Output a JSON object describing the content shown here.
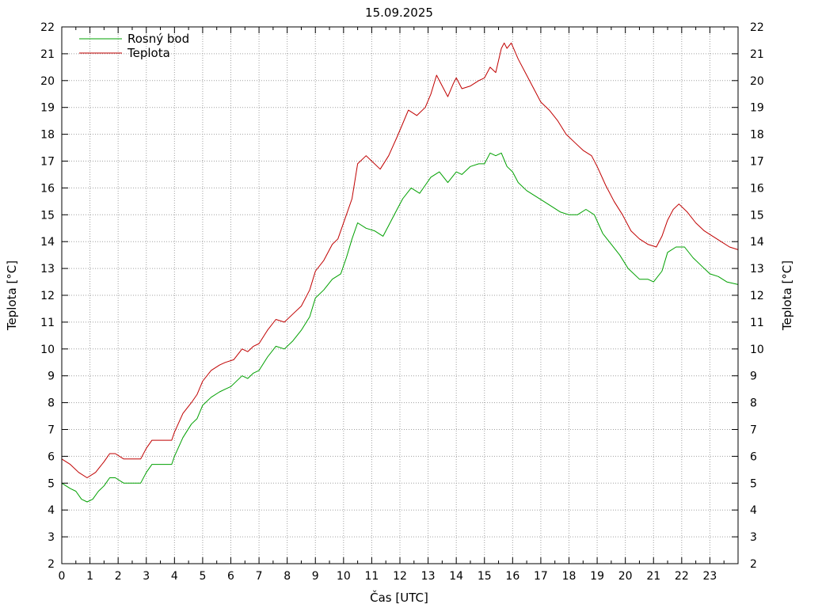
{
  "chart_data": {
    "type": "line",
    "title": "15.09.2025",
    "xlabel": "Čas [UTC]",
    "ylabel": "Teplota [°C]",
    "y2label": "Teplota [°C]",
    "xlim": [
      0,
      24
    ],
    "ylim": [
      2,
      22
    ],
    "x_ticks": [
      0,
      1,
      2,
      3,
      4,
      5,
      6,
      7,
      8,
      9,
      10,
      11,
      12,
      13,
      14,
      15,
      16,
      17,
      18,
      19,
      20,
      21,
      22,
      23
    ],
    "y_ticks": [
      2,
      3,
      4,
      5,
      6,
      7,
      8,
      9,
      10,
      11,
      12,
      13,
      14,
      15,
      16,
      17,
      18,
      19,
      20,
      21,
      22
    ],
    "grid": true,
    "legend_position": "top-left",
    "series": [
      {
        "name": "Rosný bod",
        "color": "#00a000",
        "points": [
          [
            0.0,
            5.0
          ],
          [
            0.3,
            4.8
          ],
          [
            0.5,
            4.7
          ],
          [
            0.7,
            4.4
          ],
          [
            0.9,
            4.3
          ],
          [
            1.1,
            4.4
          ],
          [
            1.3,
            4.7
          ],
          [
            1.5,
            4.9
          ],
          [
            1.7,
            5.2
          ],
          [
            1.9,
            5.2
          ],
          [
            2.2,
            5.0
          ],
          [
            2.5,
            5.0
          ],
          [
            2.8,
            5.0
          ],
          [
            3.0,
            5.4
          ],
          [
            3.2,
            5.7
          ],
          [
            3.5,
            5.7
          ],
          [
            3.9,
            5.7
          ],
          [
            4.0,
            6.0
          ],
          [
            4.3,
            6.7
          ],
          [
            4.6,
            7.2
          ],
          [
            4.8,
            7.4
          ],
          [
            5.0,
            7.9
          ],
          [
            5.3,
            8.2
          ],
          [
            5.6,
            8.4
          ],
          [
            5.8,
            8.5
          ],
          [
            6.0,
            8.6
          ],
          [
            6.4,
            9.0
          ],
          [
            6.6,
            8.9
          ],
          [
            6.8,
            9.1
          ],
          [
            7.0,
            9.2
          ],
          [
            7.3,
            9.7
          ],
          [
            7.6,
            10.1
          ],
          [
            7.9,
            10.0
          ],
          [
            8.2,
            10.3
          ],
          [
            8.5,
            10.7
          ],
          [
            8.8,
            11.2
          ],
          [
            9.0,
            11.9
          ],
          [
            9.3,
            12.2
          ],
          [
            9.6,
            12.6
          ],
          [
            9.9,
            12.8
          ],
          [
            10.1,
            13.4
          ],
          [
            10.3,
            14.1
          ],
          [
            10.5,
            14.7
          ],
          [
            10.8,
            14.5
          ],
          [
            11.1,
            14.4
          ],
          [
            11.4,
            14.2
          ],
          [
            11.6,
            14.6
          ],
          [
            11.9,
            15.2
          ],
          [
            12.1,
            15.6
          ],
          [
            12.4,
            16.0
          ],
          [
            12.7,
            15.8
          ],
          [
            12.9,
            16.1
          ],
          [
            13.1,
            16.4
          ],
          [
            13.4,
            16.6
          ],
          [
            13.7,
            16.2
          ],
          [
            14.0,
            16.6
          ],
          [
            14.2,
            16.5
          ],
          [
            14.5,
            16.8
          ],
          [
            14.8,
            16.9
          ],
          [
            15.0,
            16.9
          ],
          [
            15.2,
            17.3
          ],
          [
            15.4,
            17.2
          ],
          [
            15.6,
            17.3
          ],
          [
            15.8,
            16.8
          ],
          [
            16.0,
            16.6
          ],
          [
            16.2,
            16.2
          ],
          [
            16.5,
            15.9
          ],
          [
            16.8,
            15.7
          ],
          [
            17.1,
            15.5
          ],
          [
            17.4,
            15.3
          ],
          [
            17.7,
            15.1
          ],
          [
            18.0,
            15.0
          ],
          [
            18.3,
            15.0
          ],
          [
            18.6,
            15.2
          ],
          [
            18.9,
            15.0
          ],
          [
            19.2,
            14.3
          ],
          [
            19.5,
            13.9
          ],
          [
            19.8,
            13.5
          ],
          [
            20.1,
            13.0
          ],
          [
            20.5,
            12.6
          ],
          [
            20.8,
            12.6
          ],
          [
            21.0,
            12.5
          ],
          [
            21.3,
            12.9
          ],
          [
            21.5,
            13.6
          ],
          [
            21.8,
            13.8
          ],
          [
            22.1,
            13.8
          ],
          [
            22.4,
            13.4
          ],
          [
            22.7,
            13.1
          ],
          [
            23.0,
            12.8
          ],
          [
            23.3,
            12.7
          ],
          [
            23.6,
            12.5
          ],
          [
            24.0,
            12.4
          ]
        ]
      },
      {
        "name": "Teplota",
        "color": "#c00000",
        "points": [
          [
            0.0,
            5.9
          ],
          [
            0.3,
            5.7
          ],
          [
            0.6,
            5.4
          ],
          [
            0.9,
            5.2
          ],
          [
            1.2,
            5.4
          ],
          [
            1.5,
            5.8
          ],
          [
            1.7,
            6.1
          ],
          [
            1.9,
            6.1
          ],
          [
            2.2,
            5.9
          ],
          [
            2.5,
            5.9
          ],
          [
            2.8,
            5.9
          ],
          [
            3.0,
            6.3
          ],
          [
            3.2,
            6.6
          ],
          [
            3.6,
            6.6
          ],
          [
            3.9,
            6.6
          ],
          [
            4.0,
            6.9
          ],
          [
            4.3,
            7.6
          ],
          [
            4.6,
            8.0
          ],
          [
            4.8,
            8.3
          ],
          [
            5.0,
            8.8
          ],
          [
            5.3,
            9.2
          ],
          [
            5.6,
            9.4
          ],
          [
            5.8,
            9.5
          ],
          [
            6.1,
            9.6
          ],
          [
            6.4,
            10.0
          ],
          [
            6.6,
            9.9
          ],
          [
            6.8,
            10.1
          ],
          [
            7.0,
            10.2
          ],
          [
            7.3,
            10.7
          ],
          [
            7.6,
            11.1
          ],
          [
            7.9,
            11.0
          ],
          [
            8.2,
            11.3
          ],
          [
            8.5,
            11.6
          ],
          [
            8.8,
            12.2
          ],
          [
            9.0,
            12.9
          ],
          [
            9.3,
            13.3
          ],
          [
            9.6,
            13.9
          ],
          [
            9.8,
            14.1
          ],
          [
            10.1,
            15.0
          ],
          [
            10.3,
            15.6
          ],
          [
            10.5,
            16.9
          ],
          [
            10.8,
            17.2
          ],
          [
            11.0,
            17.0
          ],
          [
            11.3,
            16.7
          ],
          [
            11.6,
            17.2
          ],
          [
            11.9,
            17.9
          ],
          [
            12.1,
            18.4
          ],
          [
            12.3,
            18.9
          ],
          [
            12.6,
            18.7
          ],
          [
            12.9,
            19.0
          ],
          [
            13.1,
            19.5
          ],
          [
            13.3,
            20.2
          ],
          [
            13.5,
            19.8
          ],
          [
            13.7,
            19.4
          ],
          [
            13.9,
            19.9
          ],
          [
            14.0,
            20.1
          ],
          [
            14.2,
            19.7
          ],
          [
            14.5,
            19.8
          ],
          [
            14.8,
            20.0
          ],
          [
            15.0,
            20.1
          ],
          [
            15.2,
            20.5
          ],
          [
            15.4,
            20.3
          ],
          [
            15.6,
            21.2
          ],
          [
            15.7,
            21.4
          ],
          [
            15.8,
            21.2
          ],
          [
            15.95,
            21.4
          ],
          [
            16.2,
            20.8
          ],
          [
            16.5,
            20.2
          ],
          [
            16.8,
            19.6
          ],
          [
            17.0,
            19.2
          ],
          [
            17.3,
            18.9
          ],
          [
            17.6,
            18.5
          ],
          [
            17.9,
            18.0
          ],
          [
            18.2,
            17.7
          ],
          [
            18.5,
            17.4
          ],
          [
            18.8,
            17.2
          ],
          [
            19.0,
            16.8
          ],
          [
            19.3,
            16.1
          ],
          [
            19.6,
            15.5
          ],
          [
            19.9,
            15.0
          ],
          [
            20.2,
            14.4
          ],
          [
            20.5,
            14.1
          ],
          [
            20.8,
            13.9
          ],
          [
            21.1,
            13.8
          ],
          [
            21.3,
            14.2
          ],
          [
            21.5,
            14.8
          ],
          [
            21.7,
            15.2
          ],
          [
            21.9,
            15.4
          ],
          [
            22.2,
            15.1
          ],
          [
            22.5,
            14.7
          ],
          [
            22.8,
            14.4
          ],
          [
            23.1,
            14.2
          ],
          [
            23.4,
            14.0
          ],
          [
            23.7,
            13.8
          ],
          [
            24.0,
            13.7
          ]
        ]
      }
    ]
  }
}
